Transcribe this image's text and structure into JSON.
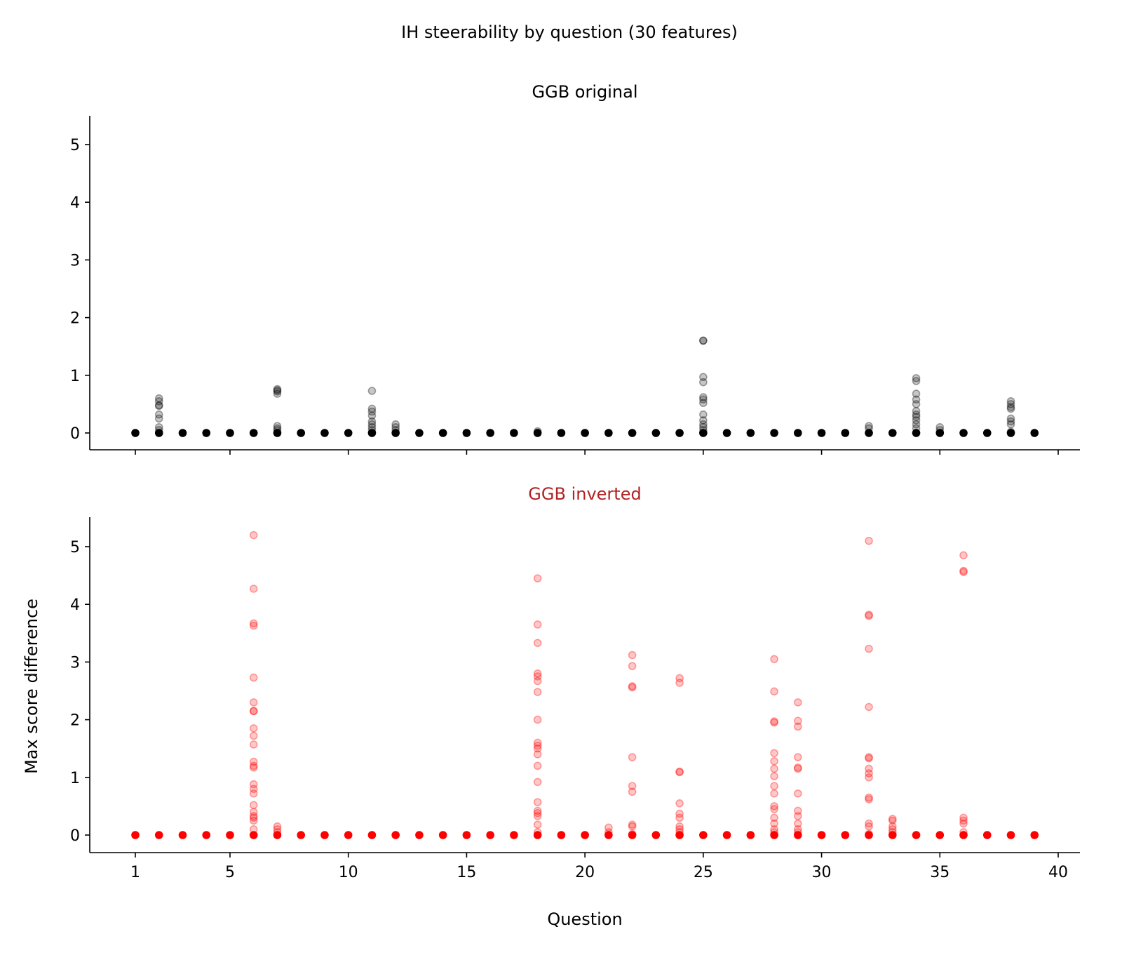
{
  "chart_data": {
    "type": "scatter",
    "title": "IH steerability by question (30 features)",
    "xlabel": "Question",
    "ylabel": "Max score difference",
    "xlim": [
      -0.9,
      40.9
    ],
    "x_ticks": [
      1,
      5,
      10,
      15,
      20,
      25,
      30,
      35,
      40
    ],
    "y_ticks": [
      0,
      1,
      2,
      3,
      4,
      5
    ],
    "ylim": [
      -0.3,
      5.5
    ],
    "grid": false,
    "panels": [
      {
        "title": "GGB original",
        "title_color": "#000000",
        "marker_color": "#000000",
        "points": {
          "1": [
            0
          ],
          "2": [
            0.6,
            0.55,
            0.48,
            0.47,
            0.32,
            0.25,
            0.1,
            0.05,
            0
          ],
          "3": [
            0
          ],
          "4": [
            0
          ],
          "5": [
            0
          ],
          "6": [
            0
          ],
          "7": [
            0.76,
            0.74,
            0.72,
            0.68,
            0.12,
            0.08,
            0.05,
            0
          ],
          "8": [
            0
          ],
          "9": [
            0
          ],
          "10": [
            0
          ],
          "11": [
            0.73,
            0.42,
            0.37,
            0.3,
            0.2,
            0.15,
            0.1,
            0.05,
            0
          ],
          "12": [
            0.15,
            0.1,
            0.05,
            0
          ],
          "13": [
            0
          ],
          "14": [
            0
          ],
          "15": [
            0
          ],
          "16": [
            0
          ],
          "17": [
            0
          ],
          "18": [
            0.03,
            0
          ],
          "19": [
            0
          ],
          "20": [
            0
          ],
          "21": [
            0
          ],
          "22": [
            0
          ],
          "23": [
            0
          ],
          "24": [
            0
          ],
          "25": [
            1.6,
            1.6,
            0.97,
            0.88,
            0.62,
            0.58,
            0.52,
            0.32,
            0.22,
            0.15,
            0.1,
            0.05,
            0
          ],
          "26": [
            0
          ],
          "27": [
            0
          ],
          "28": [
            0
          ],
          "29": [
            0
          ],
          "30": [
            0
          ],
          "31": [
            0
          ],
          "32": [
            0.12,
            0.08,
            0
          ],
          "33": [
            0
          ],
          "34": [
            0.95,
            0.9,
            0.68,
            0.58,
            0.5,
            0.38,
            0.32,
            0.28,
            0.22,
            0.15,
            0.08,
            0
          ],
          "35": [
            0.1,
            0.05,
            0
          ],
          "36": [
            0
          ],
          "37": [
            0
          ],
          "38": [
            0.55,
            0.5,
            0.45,
            0.42,
            0.25,
            0.2,
            0.15,
            0.02,
            0
          ],
          "39": [
            0
          ]
        }
      },
      {
        "title": "GGB inverted",
        "title_color": "#b22222",
        "marker_color": "#ff0000",
        "points": {
          "1": [
            0
          ],
          "2": [
            0
          ],
          "3": [
            0
          ],
          "4": [
            0
          ],
          "5": [
            0
          ],
          "6": [
            5.2,
            4.27,
            3.67,
            3.63,
            2.73,
            2.3,
            2.15,
            2.15,
            1.85,
            1.72,
            1.57,
            1.27,
            1.2,
            1.17,
            0.88,
            0.8,
            0.72,
            0.52,
            0.4,
            0.33,
            0.3,
            0.25,
            0.1,
            0
          ],
          "7": [
            0.15,
            0.1,
            0.05,
            0
          ],
          "8": [
            0
          ],
          "9": [
            0
          ],
          "10": [
            0
          ],
          "11": [
            0
          ],
          "12": [
            0
          ],
          "13": [
            0
          ],
          "14": [
            0
          ],
          "15": [
            0
          ],
          "16": [
            0
          ],
          "17": [
            0
          ],
          "18": [
            4.45,
            3.65,
            3.33,
            2.8,
            2.75,
            2.67,
            2.48,
            2.0,
            1.6,
            1.55,
            1.5,
            1.4,
            1.2,
            0.92,
            0.57,
            0.42,
            0.38,
            0.33,
            0.18,
            0.05,
            0
          ],
          "19": [
            0
          ],
          "20": [
            0
          ],
          "21": [
            0.13,
            0.05,
            0
          ],
          "22": [
            3.12,
            2.93,
            2.58,
            2.56,
            1.35,
            0.85,
            0.75,
            0.18,
            0.15,
            0.02,
            0
          ],
          "23": [
            0
          ],
          "24": [
            2.72,
            2.64,
            1.1,
            1.09,
            0.55,
            0.37,
            0.3,
            0.15,
            0.1,
            0.05,
            0
          ],
          "25": [
            0
          ],
          "26": [
            0
          ],
          "27": [
            0
          ],
          "28": [
            3.05,
            2.49,
            1.97,
            1.95,
            1.42,
            1.28,
            1.15,
            1.02,
            0.85,
            0.72,
            0.5,
            0.45,
            0.3,
            0.2,
            0.1,
            0.05,
            0
          ],
          "29": [
            2.3,
            1.98,
            1.88,
            1.35,
            1.17,
            1.15,
            0.72,
            0.42,
            0.33,
            0.2,
            0.1,
            0.05,
            0
          ],
          "30": [
            0
          ],
          "31": [
            0
          ],
          "32": [
            5.1,
            3.82,
            3.8,
            3.23,
            2.22,
            1.35,
            1.33,
            1.15,
            1.07,
            1.0,
            0.65,
            0.62,
            0.2,
            0.15,
            0.02,
            0
          ],
          "33": [
            0.28,
            0.25,
            0.15,
            0.1,
            0.05,
            0
          ],
          "34": [
            0
          ],
          "35": [
            0
          ],
          "36": [
            4.85,
            4.58,
            4.56,
            0.3,
            0.25,
            0.2,
            0.05,
            0
          ],
          "37": [
            0
          ],
          "38": [
            0
          ],
          "39": [
            0
          ]
        }
      }
    ]
  }
}
